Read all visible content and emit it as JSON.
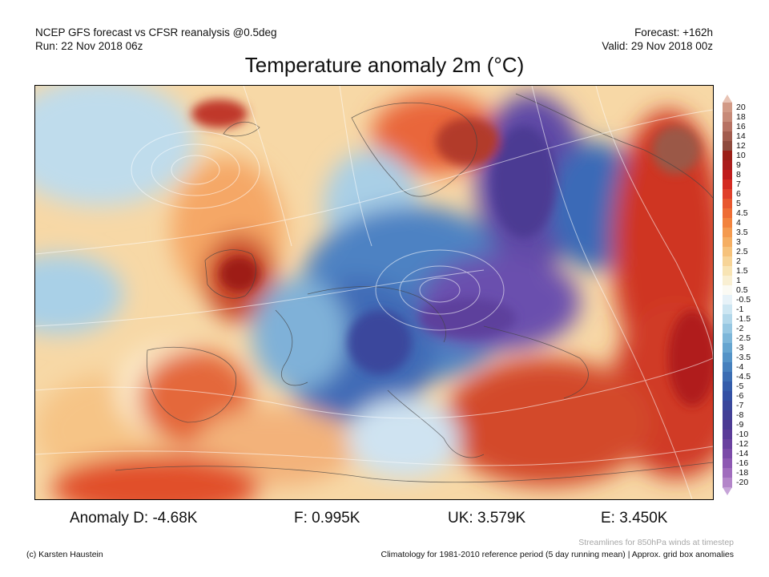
{
  "header": {
    "line1_left": "NCEP GFS forecast vs CFSR reanalysis @0.5deg",
    "line2_left": "Run: 22 Nov 2018 06z",
    "line1_right": "Forecast: +162h",
    "line2_right": "Valid: 29 Nov 2018 00z"
  },
  "title": "Temperature anomaly 2m (°C)",
  "colorbar": {
    "labels": [
      "20",
      "18",
      "16",
      "14",
      "12",
      "10",
      "9",
      "8",
      "7",
      "6",
      "5",
      "4.5",
      "4",
      "3.5",
      "3",
      "2.5",
      "2",
      "1.5",
      "1",
      "0.5",
      "-0.5",
      "-1",
      "-1.5",
      "-2",
      "-2.5",
      "-3",
      "-3.5",
      "-4",
      "-4.5",
      "-5",
      "-6",
      "-7",
      "-8",
      "-9",
      "-10",
      "-12",
      "-14",
      "-16",
      "-18",
      "-20"
    ],
    "colors": [
      "#d29a86",
      "#c78a78",
      "#b77263",
      "#a25c4e",
      "#8e4a3d",
      "#9b1f17",
      "#ab1d1c",
      "#c01c1c",
      "#d42b22",
      "#e0402b",
      "#e8572f",
      "#ee6d35",
      "#f2833e",
      "#f49a4f",
      "#f5ae62",
      "#f6c27b",
      "#f7d497",
      "#f8e4b4",
      "#f9efd2",
      "#fbfaf3",
      "#e7f2f8",
      "#cde6f2",
      "#b2d7ea",
      "#97c7e2",
      "#7db6d9",
      "#66a5d0",
      "#5493c7",
      "#4680bd",
      "#3b6db3",
      "#345caa",
      "#3350a4",
      "#3a479c",
      "#423f96",
      "#4b3a93",
      "#5a3b98",
      "#6a419f",
      "#7b4aa8",
      "#8d58b2",
      "#a06cbd",
      "#b385c9"
    ],
    "top_tip_color": "#e8c3b4",
    "bottom_tip_color": "#c6a4d8"
  },
  "stats": {
    "d": "Anomaly D: -4.68K",
    "f": "F: 0.995K",
    "uk": "UK: 3.579K",
    "e": "E: 3.450K"
  },
  "footer": {
    "credit": "(c) Karsten Haustein",
    "streamlines_note": "Streamlines for 850hPa winds at timestep",
    "climatology_note": "Climatology for 1981-2010 reference period (5 day running mean) | Approx. grid box anomalies"
  }
}
